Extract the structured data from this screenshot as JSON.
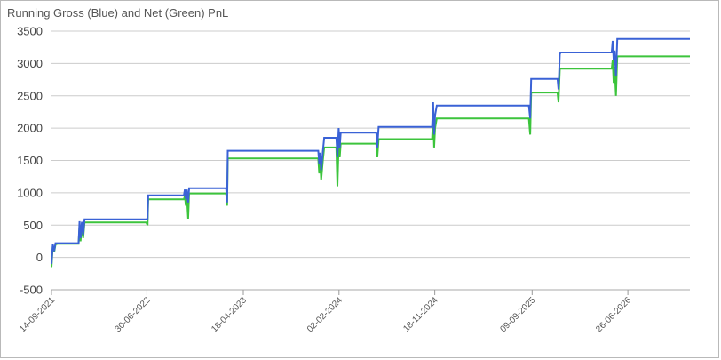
{
  "chart_data": {
    "type": "line",
    "title": "Running Gross (Blue) and Net (Green) PnL",
    "xlabel": "",
    "ylabel": "",
    "ylim": [
      -500,
      3500
    ],
    "xlim": [
      "2021-09-14",
      "2026-12-31"
    ],
    "grid": true,
    "legend": "none",
    "yticks": [
      3500,
      3000,
      2500,
      2000,
      1500,
      1000,
      500,
      0,
      -500
    ],
    "xticks": [
      "14-09-2021",
      "30-06-2022",
      "18-04-2023",
      "02-02-2024",
      "18-11-2024",
      "09-09-2025",
      "26-06-2026"
    ],
    "xtick_dates": [
      "2021-09-14",
      "2022-06-30",
      "2023-04-18",
      "2024-02-02",
      "2024-11-18",
      "2025-09-09",
      "2026-06-26"
    ],
    "series": [
      {
        "color": "#3a62d6",
        "x": [
          "2021-09-14",
          "2021-09-18",
          "2021-09-22",
          "2021-09-26",
          "2021-10-02",
          "2021-12-05",
          "2021-12-08",
          "2021-12-11",
          "2021-12-15",
          "2021-12-19",
          "2021-12-23",
          "2022-06-28",
          "2022-07-02",
          "2022-07-04",
          "2022-10-20",
          "2022-10-23",
          "2022-10-26",
          "2022-10-29",
          "2022-11-02",
          "2022-11-05",
          "2023-02-25",
          "2023-02-28",
          "2023-03-02",
          "2023-03-05",
          "2023-12-01",
          "2023-12-04",
          "2023-12-07",
          "2023-12-10",
          "2023-12-15",
          "2023-12-19",
          "2024-01-25",
          "2024-01-28",
          "2024-02-01",
          "2024-02-04",
          "2024-02-07",
          "2024-05-25",
          "2024-05-28",
          "2024-06-01",
          "2024-06-04",
          "2024-11-10",
          "2024-11-13",
          "2024-11-16",
          "2024-11-19",
          "2024-11-24",
          "2025-08-30",
          "2025-09-03",
          "2025-09-06",
          "2025-11-25",
          "2025-11-28",
          "2025-12-02",
          "2025-12-05",
          "2026-05-08",
          "2026-05-11",
          "2026-05-14",
          "2026-05-17",
          "2026-05-21",
          "2026-05-25",
          "2026-12-31"
        ],
        "y": [
          -100,
          200,
          100,
          220,
          220,
          220,
          560,
          300,
          550,
          350,
          590,
          590,
          600,
          960,
          960,
          1050,
          900,
          1050,
          850,
          1070,
          1070,
          850,
          1650,
          1650,
          1650,
          1450,
          1620,
          1350,
          1640,
          1850,
          1850,
          1550,
          2000,
          1700,
          1930,
          1930,
          1700,
          2020,
          2020,
          2020,
          2400,
          1900,
          2200,
          2350,
          2350,
          2150,
          2760,
          2760,
          2600,
          3150,
          3170,
          3170,
          3350,
          3050,
          3200,
          2800,
          3380,
          3380
        ]
      },
      {
        "color": "#3cc43c",
        "x": [
          "2021-09-14",
          "2021-09-18",
          "2021-09-22",
          "2021-09-26",
          "2021-10-02",
          "2021-12-05",
          "2021-12-08",
          "2021-12-11",
          "2021-12-15",
          "2021-12-19",
          "2021-12-23",
          "2022-06-28",
          "2022-07-02",
          "2022-07-04",
          "2022-10-20",
          "2022-10-23",
          "2022-10-26",
          "2022-10-29",
          "2022-11-02",
          "2022-11-05",
          "2023-02-25",
          "2023-02-28",
          "2023-03-02",
          "2023-03-05",
          "2023-12-01",
          "2023-12-04",
          "2023-12-07",
          "2023-12-10",
          "2023-12-15",
          "2023-12-19",
          "2024-01-25",
          "2024-01-28",
          "2024-02-01",
          "2024-02-04",
          "2024-02-07",
          "2024-05-25",
          "2024-05-28",
          "2024-06-01",
          "2024-06-04",
          "2024-11-10",
          "2024-11-13",
          "2024-11-16",
          "2024-11-19",
          "2024-11-24",
          "2025-08-30",
          "2025-09-03",
          "2025-09-06",
          "2025-11-25",
          "2025-11-28",
          "2025-12-02",
          "2025-12-05",
          "2026-05-08",
          "2026-05-11",
          "2026-05-14",
          "2026-05-17",
          "2026-05-21",
          "2026-05-25",
          "2026-12-31"
        ],
        "y": [
          -150,
          180,
          80,
          200,
          210,
          210,
          500,
          250,
          500,
          300,
          540,
          540,
          500,
          900,
          900,
          950,
          800,
          950,
          600,
          990,
          990,
          800,
          1530,
          1530,
          1530,
          1300,
          1480,
          1200,
          1500,
          1700,
          1700,
          1100,
          1750,
          1550,
          1760,
          1760,
          1550,
          1830,
          1830,
          1830,
          2200,
          1700,
          2000,
          2150,
          2150,
          1900,
          2550,
          2550,
          2400,
          2920,
          2920,
          2920,
          3050,
          2700,
          2950,
          2500,
          3110,
          3110
        ]
      }
    ]
  }
}
